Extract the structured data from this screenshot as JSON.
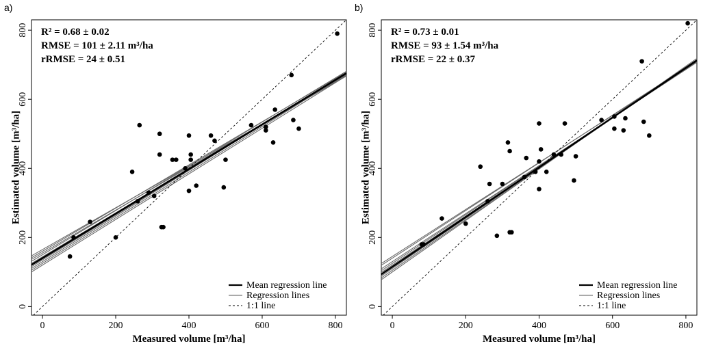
{
  "chart_data": [
    {
      "type": "scatter",
      "panel_label": "a)",
      "xlabel": "Measured volume [m³/ha]",
      "ylabel": "Estimated volume [m³/ha]",
      "xlim": [
        -30,
        830
      ],
      "ylim": [
        -25,
        830
      ],
      "xticks": [
        0,
        200,
        400,
        600,
        800
      ],
      "yticks": [
        0,
        200,
        400,
        600,
        800
      ],
      "xtick_labels": [
        "0",
        "200",
        "400",
        "600",
        "800"
      ],
      "ytick_labels": [
        "0",
        "200",
        "400",
        "600",
        "800"
      ],
      "stats": [
        "R² = 0.68 ± 0.02",
        "RMSE = 101 ± 2.11 m³/ha",
        "rRMSE = 24 ± 0.51"
      ],
      "legend": {
        "position": "bottom-right",
        "entries": [
          "Mean regression line",
          "Regression lines",
          "1:1 line"
        ]
      },
      "mean_line": {
        "intercept": 140,
        "slope": 0.645
      },
      "regression_lines": [
        {
          "intercept": 120,
          "slope": 0.66
        },
        {
          "intercept": 125,
          "slope": 0.66
        },
        {
          "intercept": 130,
          "slope": 0.66
        },
        {
          "intercept": 135,
          "slope": 0.652
        },
        {
          "intercept": 144,
          "slope": 0.635
        },
        {
          "intercept": 150,
          "slope": 0.64
        },
        {
          "intercept": 155,
          "slope": 0.62
        },
        {
          "intercept": 160,
          "slope": 0.625
        },
        {
          "intercept": 165,
          "slope": 0.605
        }
      ],
      "points": [
        [
          75,
          145
        ],
        [
          85,
          200
        ],
        [
          130,
          245
        ],
        [
          200,
          200
        ],
        [
          245,
          390
        ],
        [
          260,
          305
        ],
        [
          265,
          525
        ],
        [
          290,
          330
        ],
        [
          305,
          320
        ],
        [
          320,
          500
        ],
        [
          320,
          440
        ],
        [
          325,
          230
        ],
        [
          330,
          230
        ],
        [
          355,
          425
        ],
        [
          365,
          425
        ],
        [
          390,
          400
        ],
        [
          400,
          495
        ],
        [
          400,
          335
        ],
        [
          405,
          440
        ],
        [
          405,
          425
        ],
        [
          420,
          350
        ],
        [
          460,
          495
        ],
        [
          470,
          480
        ],
        [
          495,
          345
        ],
        [
          500,
          425
        ],
        [
          570,
          525
        ],
        [
          610,
          520
        ],
        [
          610,
          510
        ],
        [
          630,
          475
        ],
        [
          635,
          570
        ],
        [
          680,
          670
        ],
        [
          685,
          540
        ],
        [
          700,
          515
        ],
        [
          805,
          790
        ]
      ]
    },
    {
      "type": "scatter",
      "panel_label": "b)",
      "xlabel": "Measured volume [m³/ha]",
      "ylabel": "Estimated volume [m³/ha]",
      "xlim": [
        -30,
        830
      ],
      "ylim": [
        -25,
        830
      ],
      "xticks": [
        0,
        200,
        400,
        600,
        800
      ],
      "yticks": [
        0,
        200,
        400,
        600,
        800
      ],
      "xtick_labels": [
        "0",
        "200",
        "400",
        "600",
        "800"
      ],
      "ytick_labels": [
        "0",
        "200",
        "400",
        "600",
        "800"
      ],
      "stats": [
        "R² = 0.73 ± 0.01",
        "RMSE = 93 ± 1.54 m³/ha",
        "rRMSE = 22 ± 0.37"
      ],
      "legend": {
        "position": "bottom-right",
        "entries": [
          "Mean regression line",
          "Regression lines",
          "1:1 line"
        ]
      },
      "mean_line": {
        "intercept": 115,
        "slope": 0.72
      },
      "regression_lines": [
        {
          "intercept": 100,
          "slope": 0.745
        },
        {
          "intercept": 105,
          "slope": 0.735
        },
        {
          "intercept": 110,
          "slope": 0.728
        },
        {
          "intercept": 120,
          "slope": 0.71
        },
        {
          "intercept": 125,
          "slope": 0.705
        },
        {
          "intercept": 130,
          "slope": 0.695
        },
        {
          "intercept": 140,
          "slope": 0.69
        },
        {
          "intercept": 145,
          "slope": 0.68
        }
      ],
      "points": [
        [
          80,
          180
        ],
        [
          85,
          180
        ],
        [
          135,
          255
        ],
        [
          200,
          240
        ],
        [
          240,
          405
        ],
        [
          260,
          305
        ],
        [
          265,
          355
        ],
        [
          285,
          205
        ],
        [
          300,
          355
        ],
        [
          315,
          475
        ],
        [
          320,
          450
        ],
        [
          320,
          215
        ],
        [
          325,
          215
        ],
        [
          360,
          375
        ],
        [
          365,
          430
        ],
        [
          390,
          390
        ],
        [
          400,
          530
        ],
        [
          400,
          340
        ],
        [
          400,
          420
        ],
        [
          405,
          455
        ],
        [
          420,
          390
        ],
        [
          440,
          440
        ],
        [
          460,
          440
        ],
        [
          470,
          530
        ],
        [
          495,
          365
        ],
        [
          500,
          435
        ],
        [
          570,
          540
        ],
        [
          605,
          550
        ],
        [
          605,
          515
        ],
        [
          630,
          510
        ],
        [
          635,
          545
        ],
        [
          680,
          710
        ],
        [
          685,
          535
        ],
        [
          700,
          495
        ],
        [
          805,
          820
        ]
      ]
    }
  ]
}
